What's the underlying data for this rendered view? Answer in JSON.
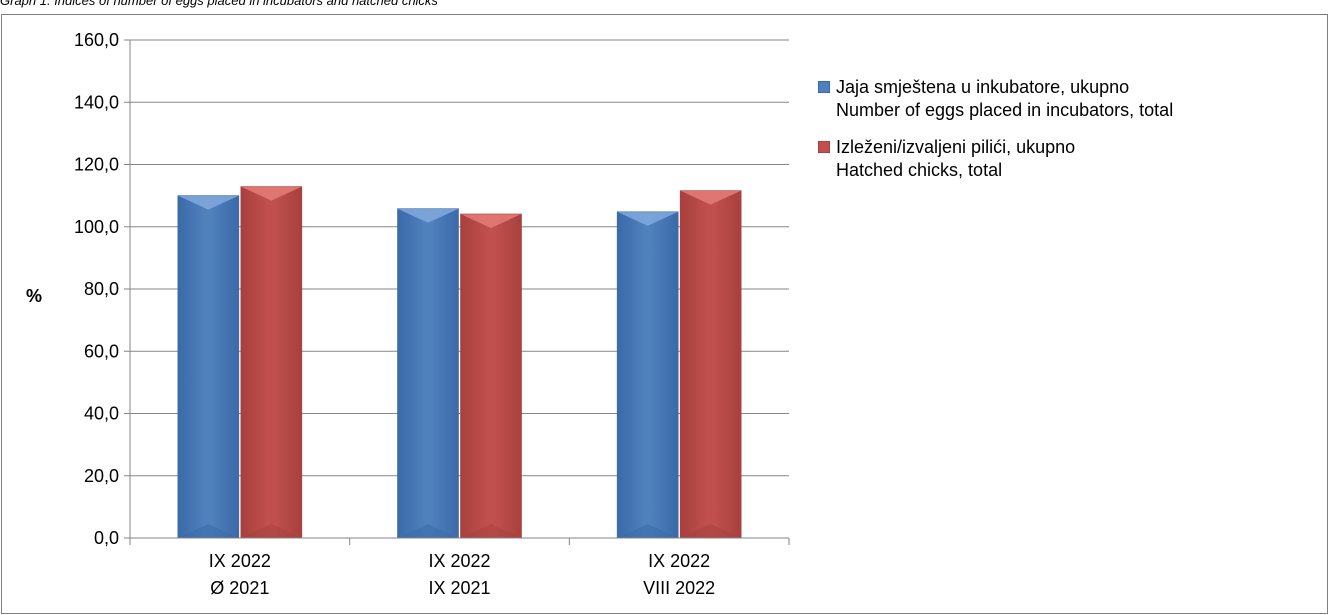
{
  "caption": "Graph 1. Indices of number of eggs placed in incubators and hatched chicks",
  "chart_data": {
    "type": "bar",
    "categories": [
      [
        "IX 2022",
        "Ø 2021"
      ],
      [
        "IX 2022",
        "IX 2021"
      ],
      [
        "IX 2022",
        "VIII 2022"
      ]
    ],
    "series": [
      {
        "name": [
          "Jaja smještena u inkubatore, ukupno",
          "Number  of eggs placed in incubators, total"
        ],
        "values": [
          110.0,
          105.8,
          104.8
        ],
        "color": "#4f81bd",
        "color_light": "#7ea6dc",
        "color_dark": "#3a6aa8"
      },
      {
        "name": [
          "Izleženi/izvaljeni pilići, ukupno",
          "Hatched chicks, total"
        ],
        "values": [
          112.9,
          104.1,
          111.6
        ],
        "color": "#c0504d",
        "color_light": "#e37a76",
        "color_dark": "#a8403d"
      }
    ],
    "ylabel": "%",
    "ylim": [
      0,
      160
    ],
    "yticks": [
      "0,0",
      "20,0",
      "40,0",
      "60,0",
      "80,0",
      "100,0",
      "120,0",
      "140,0",
      "160,0"
    ],
    "grid": true,
    "legend_position": "right"
  }
}
